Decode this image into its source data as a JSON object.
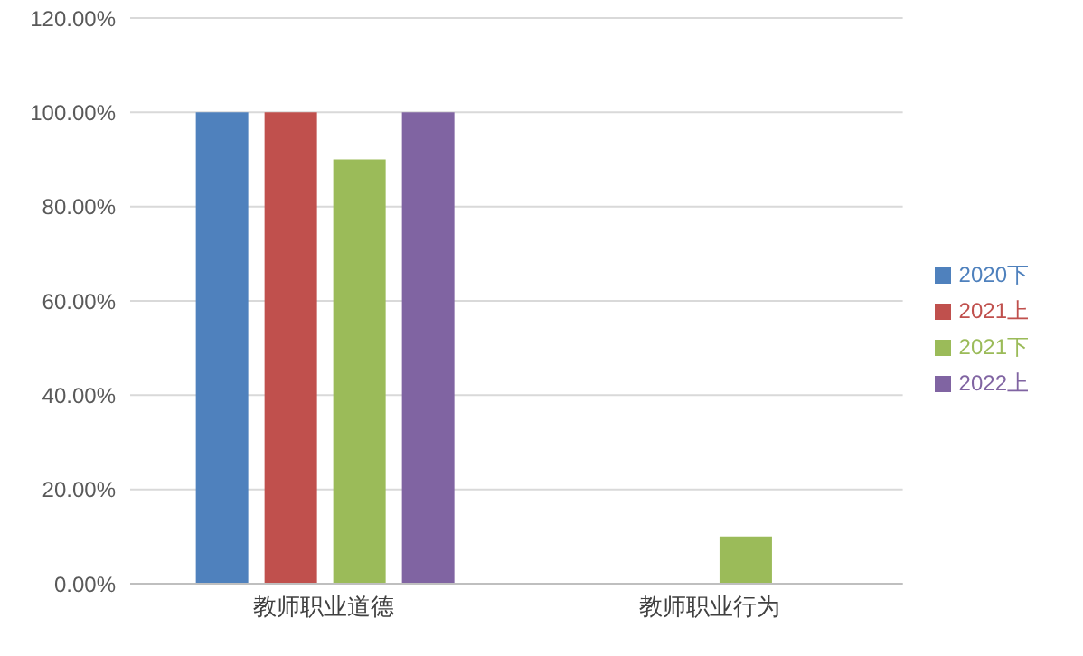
{
  "chart_data": {
    "type": "bar",
    "categories": [
      "教师职业道德",
      "教师职业行为"
    ],
    "series": [
      {
        "name": "2020下",
        "color": "#4f81bd",
        "values": [
          100,
          0
        ]
      },
      {
        "name": "2021上",
        "color": "#c0504d",
        "values": [
          100,
          0
        ]
      },
      {
        "name": "2021下",
        "color": "#9bbb59",
        "values": [
          90,
          10
        ]
      },
      {
        "name": "2022上",
        "color": "#8064a2",
        "values": [
          100,
          0
        ]
      }
    ],
    "ylim": [
      0,
      120
    ],
    "yticks": [
      {
        "value": 0,
        "label": "0.00%"
      },
      {
        "value": 20,
        "label": "20.00%"
      },
      {
        "value": 40,
        "label": "40.00%"
      },
      {
        "value": 60,
        "label": "60.00%"
      },
      {
        "value": 80,
        "label": "80.00%"
      },
      {
        "value": 100,
        "label": "100.00%"
      },
      {
        "value": 120,
        "label": "120.00%"
      }
    ],
    "grid": "y",
    "legend": "right"
  }
}
